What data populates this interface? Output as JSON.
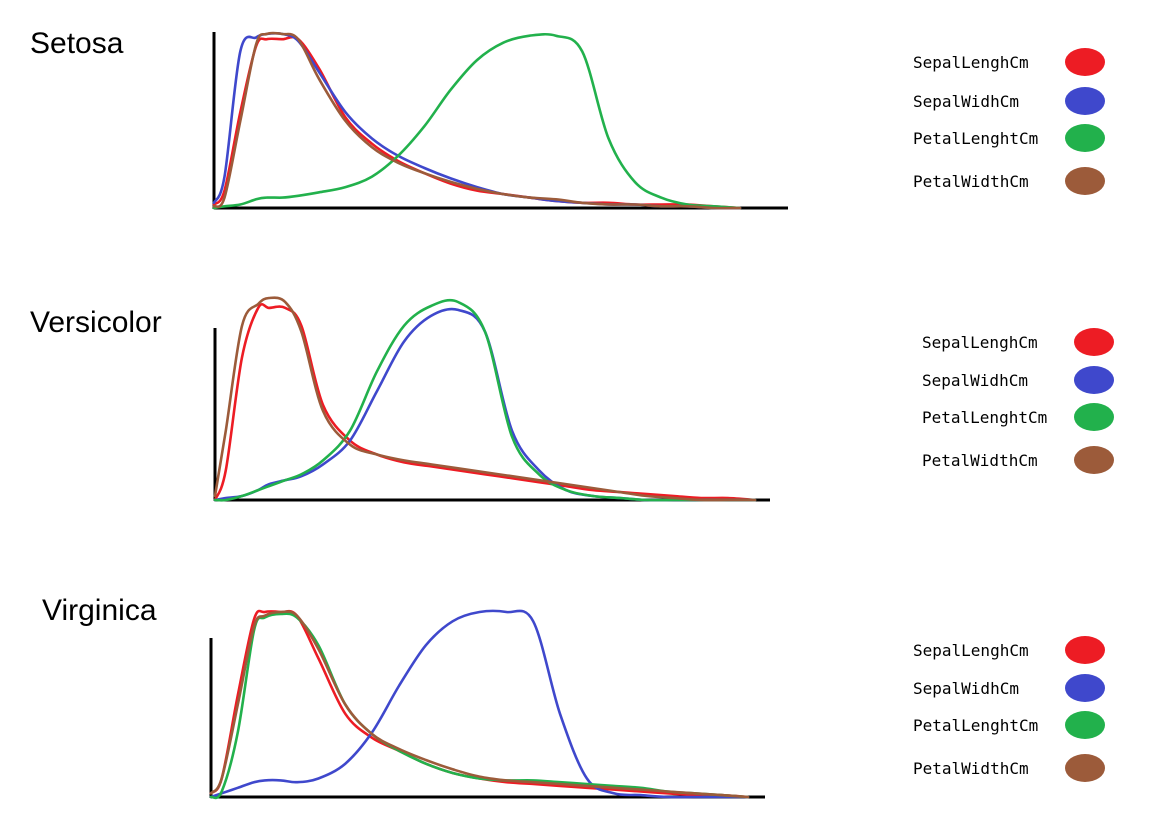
{
  "chart_data": [
    {
      "type": "line",
      "title": "Setosa",
      "xlabel": "",
      "ylabel": "",
      "x": [
        0,
        0.02,
        0.05,
        0.08,
        0.1,
        0.13,
        0.16,
        0.2,
        0.25,
        0.3,
        0.35,
        0.4,
        0.45,
        0.5,
        0.55,
        0.6,
        0.65,
        0.7,
        0.75,
        0.8,
        0.85,
        0.9,
        0.95,
        1
      ],
      "xlim": [
        0,
        1
      ],
      "ylim": [
        0,
        1
      ],
      "grid": false,
      "legend_position": "right",
      "series": [
        {
          "name": "SepalLenghCm",
          "color": "#ed1c24",
          "values": [
            0.02,
            0.1,
            0.55,
            0.93,
            0.97,
            0.97,
            0.97,
            0.8,
            0.52,
            0.37,
            0.27,
            0.2,
            0.14,
            0.1,
            0.08,
            0.06,
            0.04,
            0.03,
            0.03,
            0.02,
            0.02,
            0.02,
            0.01,
            0.0
          ]
        },
        {
          "name": "SepalWidhCm",
          "color": "#3f48cc",
          "values": [
            0.03,
            0.18,
            0.9,
            0.98,
            1.0,
            1.0,
            0.96,
            0.78,
            0.55,
            0.4,
            0.3,
            0.23,
            0.17,
            0.12,
            0.08,
            0.06,
            0.04,
            0.03,
            0.02,
            0.02,
            0.01,
            0.01,
            0.0,
            0.0
          ]
        },
        {
          "name": "PetalLenghtCm",
          "color": "#22b14c",
          "values": [
            0.0,
            0.01,
            0.02,
            0.05,
            0.06,
            0.06,
            0.07,
            0.09,
            0.12,
            0.18,
            0.3,
            0.47,
            0.68,
            0.85,
            0.95,
            0.99,
            0.99,
            0.9,
            0.4,
            0.15,
            0.06,
            0.02,
            0.01,
            0.0
          ]
        },
        {
          "name": "PetalWidthCm",
          "color": "#9c5b3a",
          "values": [
            0.01,
            0.06,
            0.5,
            0.94,
            1.0,
            1.0,
            0.97,
            0.74,
            0.5,
            0.35,
            0.26,
            0.2,
            0.15,
            0.11,
            0.08,
            0.06,
            0.05,
            0.03,
            0.02,
            0.02,
            0.01,
            0.01,
            0.0,
            0.0
          ]
        }
      ]
    },
    {
      "type": "line",
      "title": "Versicolor",
      "xlabel": "",
      "ylabel": "",
      "x": [
        0,
        0.02,
        0.05,
        0.08,
        0.1,
        0.13,
        0.16,
        0.2,
        0.25,
        0.3,
        0.35,
        0.4,
        0.45,
        0.5,
        0.55,
        0.6,
        0.65,
        0.7,
        0.75,
        0.8,
        0.85,
        0.9,
        0.95,
        1
      ],
      "xlim": [
        0,
        1
      ],
      "ylim": [
        0,
        1
      ],
      "grid": false,
      "legend_position": "right",
      "series": [
        {
          "name": "SepalLenghCm",
          "color": "#ed1c24",
          "values": [
            0.0,
            0.15,
            0.72,
            0.97,
            0.97,
            0.97,
            0.88,
            0.48,
            0.3,
            0.23,
            0.19,
            0.17,
            0.15,
            0.13,
            0.11,
            0.09,
            0.07,
            0.05,
            0.04,
            0.03,
            0.02,
            0.01,
            0.01,
            0.0
          ]
        },
        {
          "name": "SepalWidhCm",
          "color": "#3f48cc",
          "values": [
            0.0,
            0.01,
            0.02,
            0.05,
            0.08,
            0.1,
            0.12,
            0.18,
            0.3,
            0.55,
            0.8,
            0.93,
            0.96,
            0.85,
            0.35,
            0.15,
            0.05,
            0.02,
            0.01,
            0.0,
            0.0,
            0.0,
            0.0,
            0.0
          ]
        },
        {
          "name": "PetalLenghtCm",
          "color": "#22b14c",
          "values": [
            0.0,
            0.0,
            0.02,
            0.05,
            0.07,
            0.1,
            0.13,
            0.2,
            0.35,
            0.65,
            0.88,
            0.98,
            1.0,
            0.85,
            0.32,
            0.13,
            0.05,
            0.02,
            0.01,
            0.0,
            0.0,
            0.0,
            0.0,
            0.0
          ]
        },
        {
          "name": "PetalWidthCm",
          "color": "#9c5b3a",
          "values": [
            0.02,
            0.35,
            0.88,
            0.99,
            1.02,
            1.0,
            0.85,
            0.45,
            0.28,
            0.23,
            0.2,
            0.18,
            0.16,
            0.14,
            0.12,
            0.1,
            0.08,
            0.06,
            0.04,
            0.02,
            0.01,
            0.0,
            0.0,
            0.0
          ]
        }
      ]
    },
    {
      "type": "line",
      "title": "Virginica",
      "xlabel": "",
      "ylabel": "",
      "x": [
        0,
        0.02,
        0.05,
        0.08,
        0.1,
        0.13,
        0.16,
        0.2,
        0.25,
        0.3,
        0.35,
        0.4,
        0.45,
        0.5,
        0.55,
        0.6,
        0.65,
        0.7,
        0.75,
        0.8,
        0.85,
        0.9,
        0.95,
        1
      ],
      "xlim": [
        0,
        1
      ],
      "ylim": [
        0,
        1
      ],
      "grid": false,
      "legend_position": "right",
      "series": [
        {
          "name": "SepalLenghCm",
          "color": "#ed1c24",
          "values": [
            0.02,
            0.1,
            0.55,
            0.96,
            1.0,
            1.0,
            0.98,
            0.75,
            0.45,
            0.32,
            0.25,
            0.18,
            0.13,
            0.1,
            0.08,
            0.07,
            0.06,
            0.05,
            0.04,
            0.03,
            0.02,
            0.01,
            0.01,
            0.0
          ]
        },
        {
          "name": "SepalWidhCm",
          "color": "#3f48cc",
          "values": [
            0.0,
            0.02,
            0.05,
            0.08,
            0.09,
            0.09,
            0.08,
            0.1,
            0.18,
            0.35,
            0.6,
            0.82,
            0.95,
            1.0,
            1.0,
            0.95,
            0.45,
            0.1,
            0.02,
            0.01,
            0.0,
            0.0,
            0.0,
            0.0
          ]
        },
        {
          "name": "PetalLenghtCm",
          "color": "#22b14c",
          "values": [
            0.0,
            0.03,
            0.35,
            0.9,
            0.97,
            0.99,
            0.97,
            0.82,
            0.5,
            0.34,
            0.25,
            0.18,
            0.13,
            0.1,
            0.09,
            0.09,
            0.08,
            0.07,
            0.06,
            0.05,
            0.03,
            0.02,
            0.01,
            0.0
          ]
        },
        {
          "name": "PetalWidthCm",
          "color": "#9c5b3a",
          "values": [
            0.02,
            0.1,
            0.5,
            0.92,
            0.98,
            1.0,
            0.98,
            0.8,
            0.5,
            0.34,
            0.26,
            0.2,
            0.15,
            0.11,
            0.09,
            0.08,
            0.07,
            0.06,
            0.05,
            0.04,
            0.03,
            0.02,
            0.01,
            0.0
          ]
        }
      ]
    }
  ]
}
